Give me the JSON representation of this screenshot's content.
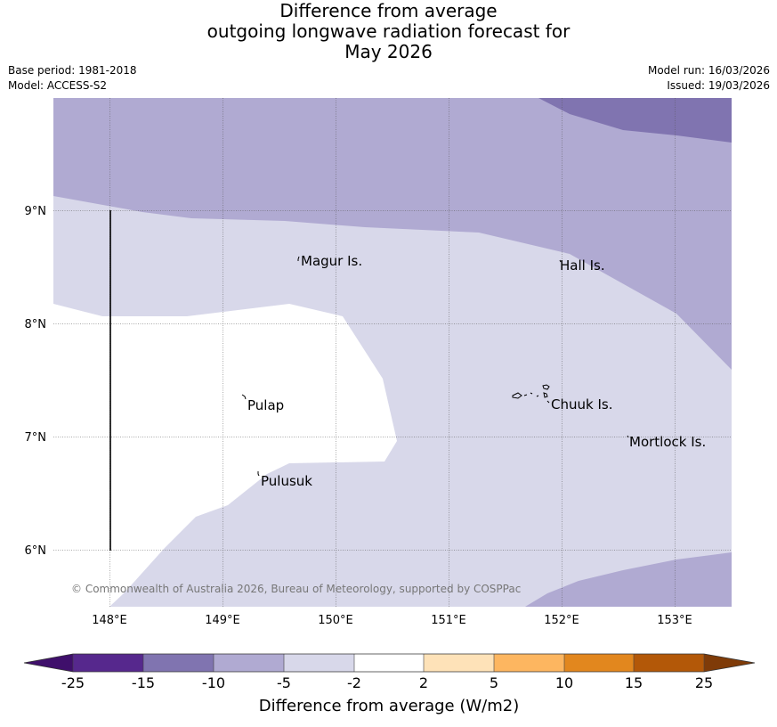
{
  "header": {
    "title_line1": "Difference from average",
    "title_line2": "outgoing longwave radiation forecast for",
    "title_line3": "May 2026",
    "base_period": "Base period: 1981-2018",
    "model": "Model: ACCESS-S2",
    "model_run": "Model run: 16/03/2026",
    "issued": "Issued: 19/03/2026"
  },
  "map": {
    "lat_labels": [
      "9°N",
      "8°N",
      "7°N",
      "6°N"
    ],
    "lon_labels": [
      "148°E",
      "149°E",
      "150°E",
      "151°E",
      "152°E",
      "153°E"
    ],
    "places": [
      "Magur Is.",
      "Hall Is.",
      "Pulap",
      "Chuuk Is.",
      "Mortlock Is.",
      "Pulusuk"
    ],
    "copyright": "© Commonwealth of Australia 2026, Bureau of Meteorology, supported by COSPPac"
  },
  "colorbar": {
    "title": "Difference from average (W/m2)",
    "labels": [
      "-25",
      "-15",
      "-10",
      "-5",
      "-2",
      "2",
      "5",
      "10",
      "15",
      "25"
    ],
    "colors": {
      "lt_m25": "#3f0f6b",
      "m25_m15": "#56288d",
      "m15_m10": "#8074b0",
      "m10_m5": "#b0aad2",
      "m5_m2": "#d8d8ea",
      "m2_p2": "#ffffff",
      "p2_p5": "#fee2b8",
      "p5_p10": "#fdb660",
      "p10_p15": "#e2871e",
      "p15_p25": "#b35808",
      "gt_p25": "#7f3b08"
    }
  }
}
